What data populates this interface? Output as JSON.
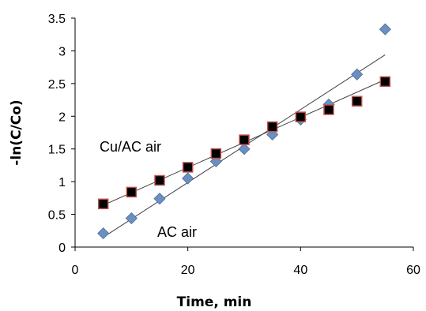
{
  "chart_data": {
    "type": "scatter",
    "title": "",
    "xlabel": "Time, min",
    "ylabel": "-ln(C/Co)",
    "xlim": [
      0,
      60
    ],
    "ylim": [
      0,
      3.5
    ],
    "x_ticks": [
      0,
      20,
      40,
      60
    ],
    "y_ticks": [
      0,
      0.5,
      1,
      1.5,
      2,
      2.5,
      3,
      3.5
    ],
    "x_tick_labels": [
      "0",
      "20",
      "40",
      "60"
    ],
    "y_tick_labels": [
      "0",
      "0.5",
      "1",
      "1.5",
      "2",
      "2.5",
      "3",
      "3.5"
    ],
    "grid": false,
    "legend": "none",
    "series": [
      {
        "name": "AC air",
        "marker": "diamond",
        "color": "#6b8fbf",
        "x": [
          5,
          10,
          15,
          20,
          25,
          30,
          35,
          40,
          45,
          50,
          55
        ],
        "y": [
          0.21,
          0.44,
          0.74,
          1.05,
          1.31,
          1.5,
          1.72,
          1.95,
          2.18,
          2.64,
          3.33
        ],
        "trendline": {
          "x": [
            5,
            55
          ],
          "y": [
            0.15,
            2.94
          ]
        }
      },
      {
        "name": "Cu/AC air",
        "marker": "square",
        "color": "#000000",
        "edge_color": "#c0504d",
        "x": [
          5,
          10,
          15,
          20,
          25,
          30,
          35,
          40,
          45,
          50,
          55
        ],
        "y": [
          0.66,
          0.84,
          1.02,
          1.22,
          1.43,
          1.64,
          1.84,
          1.99,
          2.1,
          2.23,
          2.53
        ],
        "trendline": {
          "x": [
            5,
            55
          ],
          "y": [
            0.64,
            2.56
          ]
        }
      }
    ],
    "annotations": [
      "Cu/AC air",
      "AC air"
    ],
    "colors": {
      "axis": "#000000",
      "trendline": "#404040"
    }
  }
}
